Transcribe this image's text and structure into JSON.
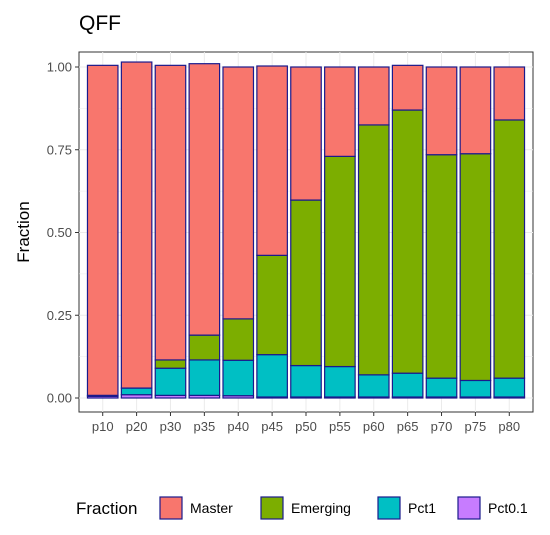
{
  "chart_data": {
    "type": "bar",
    "stacked": true,
    "title": "QFF",
    "xlabel": "",
    "ylabel": "Fraction",
    "ylim": [
      0,
      1.0
    ],
    "yticks": [
      "0.00",
      "0.25",
      "0.50",
      "0.75",
      "1.00"
    ],
    "categories": [
      "p10",
      "p20",
      "p30",
      "p35",
      "p40",
      "p45",
      "p50",
      "p55",
      "p60",
      "p65",
      "p70",
      "p75",
      "p80"
    ],
    "series": [
      {
        "name": "Pct0.1",
        "color": "#c77cff",
        "values": [
          0.005,
          0.01,
          0.008,
          0.008,
          0.007,
          0.003,
          0.003,
          0.003,
          0.003,
          0.003,
          0.003,
          0.003,
          0.003
        ]
      },
      {
        "name": "Pct1",
        "color": "#00bfc4",
        "values": [
          0.003,
          0.02,
          0.082,
          0.107,
          0.107,
          0.128,
          0.095,
          0.092,
          0.067,
          0.072,
          0.057,
          0.05,
          0.057
        ]
      },
      {
        "name": "Emerging",
        "color": "#7cae00",
        "values": [
          0.0,
          0.0,
          0.025,
          0.075,
          0.125,
          0.3,
          0.5,
          0.635,
          0.755,
          0.795,
          0.675,
          0.685,
          0.78
        ]
      },
      {
        "name": "Master",
        "color": "#f8766d",
        "values": [
          0.997,
          0.985,
          0.89,
          0.82,
          0.761,
          0.572,
          0.402,
          0.27,
          0.175,
          0.135,
          0.265,
          0.262,
          0.16
        ]
      }
    ],
    "legend": {
      "title": "Fraction",
      "position": "bottom",
      "order": [
        "Master",
        "Emerging",
        "Pct1",
        "Pct0.1"
      ]
    },
    "grid": true,
    "bar_outline_color": "#1a1a8c",
    "grid_color": "#ebebeb"
  }
}
